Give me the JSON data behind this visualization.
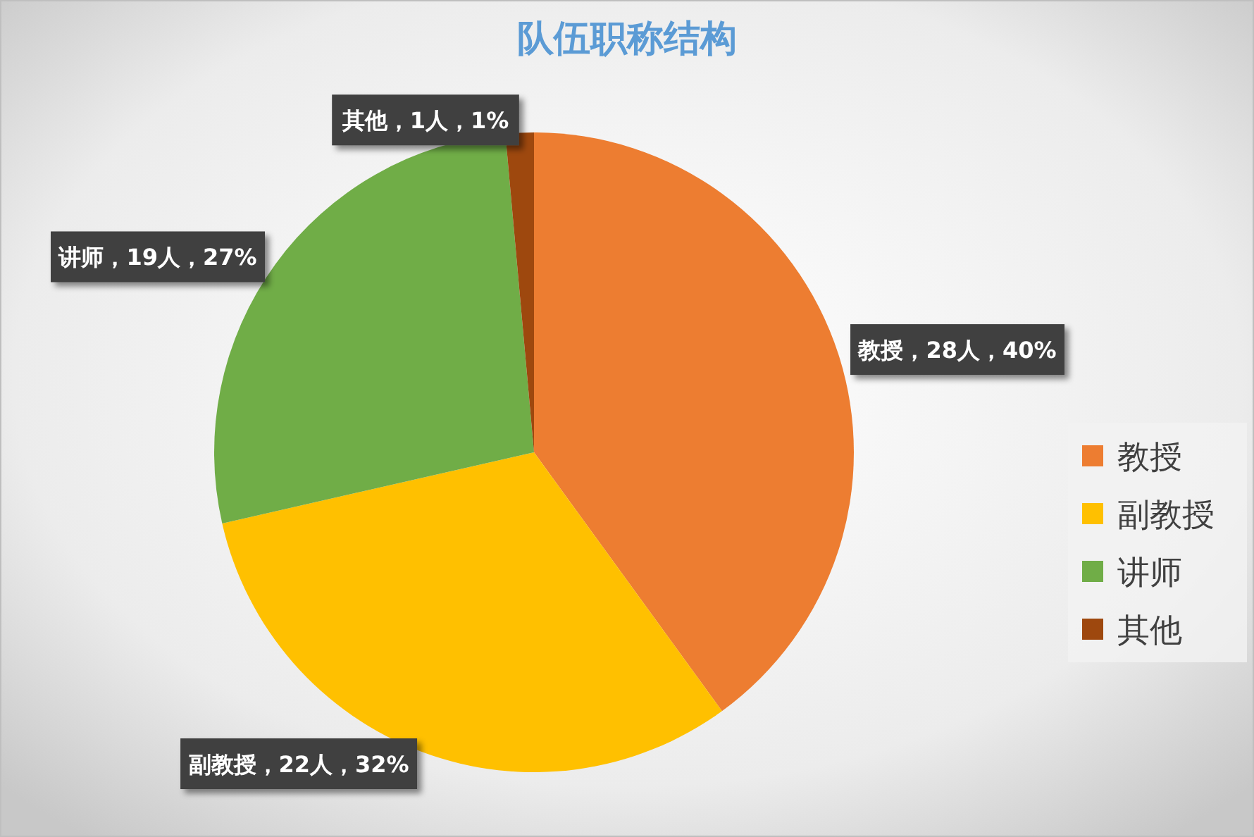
{
  "chart_data": {
    "type": "pie",
    "title": "队伍职称结构",
    "categories": [
      "教授",
      "副教授",
      "讲师",
      "其他"
    ],
    "values": [
      28,
      22,
      19,
      1
    ],
    "colors": [
      "#ed7d31",
      "#ffc000",
      "#70ad47",
      "#9e480e"
    ],
    "value_labels": [
      "教授，28人，40%",
      "副教授，22人，32%",
      "讲师，19人，27%",
      "其他，1人，1%"
    ],
    "legend": "right"
  }
}
